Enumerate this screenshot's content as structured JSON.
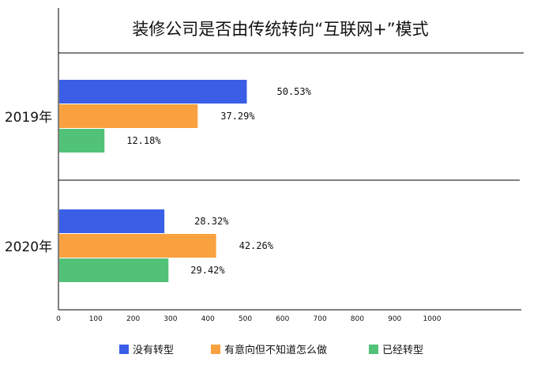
{
  "chart_data": {
    "type": "bar",
    "orientation": "horizontal",
    "title": "装修公司是否由传统转向“互联网+”模式",
    "categories": [
      "2019年",
      "2020年"
    ],
    "series": [
      {
        "name": "没有转型",
        "values": [
          50.53,
          28.32
        ],
        "labels": [
          "50.53%",
          "28.32%"
        ],
        "color": "#3b5ee6"
      },
      {
        "name": "有意向但不知道怎么做",
        "values": [
          37.29,
          42.26
        ],
        "labels": [
          "37.29%",
          "42.26%"
        ],
        "color": "#f9a13e"
      },
      {
        "name": "已经转型",
        "values": [
          12.18,
          29.42
        ],
        "labels": [
          "12.18%",
          "29.42%"
        ],
        "color": "#52c278"
      }
    ],
    "xticks": [
      "0",
      "100",
      "200",
      "300",
      "400",
      "500",
      "600",
      "700",
      "800",
      "900",
      "1000"
    ],
    "legend_position": "bottom",
    "grid": false
  }
}
